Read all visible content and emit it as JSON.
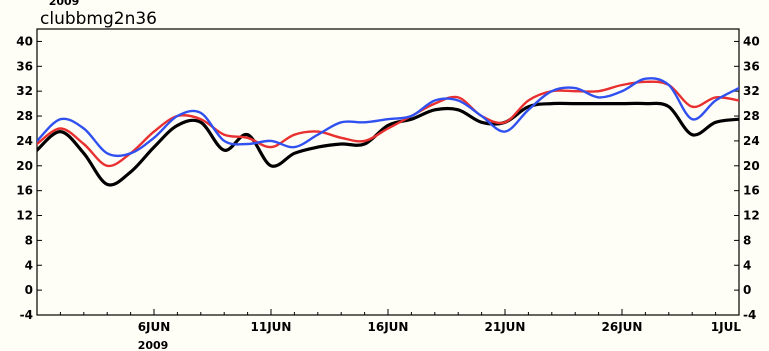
{
  "chart_data": {
    "type": "line",
    "title": "clubbmg2n36",
    "year_top": "2009",
    "year_bottom": "2009",
    "ylim": [
      -4,
      42
    ],
    "y_ticks": [
      -4,
      0,
      4,
      8,
      12,
      16,
      20,
      24,
      28,
      32,
      36,
      40
    ],
    "x_range": [
      "2009-06-01",
      "2009-07-01"
    ],
    "x_ticks": [
      {
        "label": "6JUN",
        "date": "2009-06-06"
      },
      {
        "label": "11JUN",
        "date": "2009-06-11"
      },
      {
        "label": "16JUN",
        "date": "2009-06-16"
      },
      {
        "label": "21JUN",
        "date": "2009-06-21"
      },
      {
        "label": "26JUN",
        "date": "2009-06-26"
      },
      {
        "label": "1JUL",
        "date": "2009-07-01"
      }
    ],
    "grid": false,
    "series": [
      {
        "color": "#000000",
        "x": [
          "2009-06-01",
          "2009-06-02",
          "2009-06-03",
          "2009-06-04",
          "2009-06-05",
          "2009-06-06",
          "2009-06-07",
          "2009-06-08",
          "2009-06-09",
          "2009-06-10",
          "2009-06-11",
          "2009-06-12",
          "2009-06-13",
          "2009-06-14",
          "2009-06-15",
          "2009-06-16",
          "2009-06-17",
          "2009-06-18",
          "2009-06-19",
          "2009-06-20",
          "2009-06-21",
          "2009-06-22",
          "2009-06-23",
          "2009-06-24",
          "2009-06-25",
          "2009-06-26",
          "2009-06-27",
          "2009-06-28",
          "2009-06-29",
          "2009-06-30",
          "2009-07-01"
        ],
        "values": [
          22.5,
          25.5,
          22,
          17,
          19,
          23,
          26.5,
          27,
          22.5,
          25,
          20,
          22,
          23,
          23.5,
          23.5,
          26.5,
          27.5,
          29,
          29,
          27,
          27,
          29.5,
          30,
          30,
          30,
          30,
          30,
          29.5,
          25,
          27,
          27.5
        ]
      },
      {
        "color": "#e83030",
        "x": [
          "2009-06-01",
          "2009-06-02",
          "2009-06-03",
          "2009-06-04",
          "2009-06-05",
          "2009-06-06",
          "2009-06-07",
          "2009-06-08",
          "2009-06-09",
          "2009-06-10",
          "2009-06-11",
          "2009-06-12",
          "2009-06-13",
          "2009-06-14",
          "2009-06-15",
          "2009-06-16",
          "2009-06-17",
          "2009-06-18",
          "2009-06-19",
          "2009-06-20",
          "2009-06-21",
          "2009-06-22",
          "2009-06-23",
          "2009-06-24",
          "2009-06-25",
          "2009-06-26",
          "2009-06-27",
          "2009-06-28",
          "2009-06-29",
          "2009-06-30",
          "2009-07-01"
        ],
        "values": [
          23.5,
          26,
          23.5,
          20,
          22,
          25.5,
          28,
          27.5,
          25,
          24.5,
          23,
          25,
          25.5,
          24.5,
          24,
          26,
          28,
          30,
          31,
          28,
          27,
          30.5,
          32,
          32,
          32,
          33,
          33.5,
          33,
          29.5,
          31,
          30.5
        ]
      },
      {
        "color": "#3050f0",
        "x": [
          "2009-06-01",
          "2009-06-02",
          "2009-06-03",
          "2009-06-04",
          "2009-06-05",
          "2009-06-06",
          "2009-06-07",
          "2009-06-08",
          "2009-06-09",
          "2009-06-10",
          "2009-06-11",
          "2009-06-12",
          "2009-06-13",
          "2009-06-14",
          "2009-06-15",
          "2009-06-16",
          "2009-06-17",
          "2009-06-18",
          "2009-06-19",
          "2009-06-20",
          "2009-06-21",
          "2009-06-22",
          "2009-06-23",
          "2009-06-24",
          "2009-06-25",
          "2009-06-26",
          "2009-06-27",
          "2009-06-28",
          "2009-06-29",
          "2009-06-30",
          "2009-07-01"
        ],
        "values": [
          24,
          27.5,
          26,
          22,
          22,
          24.5,
          28,
          28.5,
          24,
          23.5,
          24,
          23,
          25,
          27,
          27,
          27.5,
          28,
          30.5,
          30.5,
          28,
          25.5,
          29,
          32,
          32.5,
          31,
          32,
          34,
          33,
          27.5,
          30.5,
          32.5
        ]
      }
    ]
  }
}
